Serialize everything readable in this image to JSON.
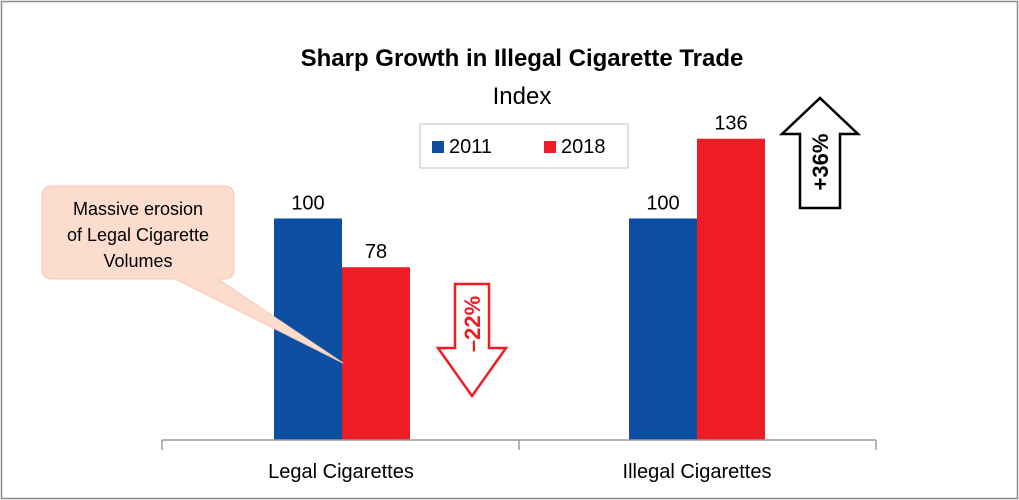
{
  "chart_data": {
    "type": "bar",
    "title": "Sharp Growth in Illegal Cigarette Trade",
    "subtitle": "Index",
    "categories": [
      "Legal Cigarettes",
      "Illegal Cigarettes"
    ],
    "series": [
      {
        "name": "2011",
        "values": [
          100,
          100
        ],
        "color": "#0b4ea2"
      },
      {
        "name": "2018",
        "values": [
          78,
          136
        ],
        "color": "#ee1c25"
      }
    ],
    "data_labels": [
      [
        "100",
        "78"
      ],
      [
        "100",
        "136"
      ]
    ],
    "ylim": [
      0,
      144
    ],
    "grid": false,
    "legend": {
      "placement": "top-center"
    },
    "annotations": {
      "callout": {
        "lines": [
          "Massive erosion",
          "of Legal Cigarette",
          "Volumes"
        ],
        "fill": "#fbdccd",
        "points_to": "Legal Cigarettes 2018"
      },
      "down_arrow": {
        "label": "–22%",
        "stroke": "#ee1c25"
      },
      "up_arrow": {
        "label": "+36%",
        "stroke": "#000000"
      }
    }
  }
}
